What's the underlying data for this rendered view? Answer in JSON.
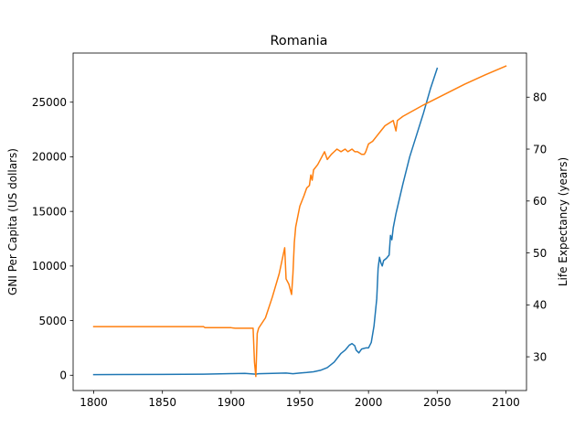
{
  "chart_data": {
    "type": "line",
    "title": "Romania",
    "xlabel": "",
    "ylabel_left": "GNI Per Capita (US dollars)",
    "ylabel_right": "Life Expectancy (years)",
    "xlim": [
      1785,
      2115
    ],
    "ylim_left": [
      -1400,
      29500
    ],
    "ylim_right": [
      23.5,
      88.5
    ],
    "x_ticks": [
      1800,
      1850,
      1900,
      1950,
      2000,
      2050,
      2100
    ],
    "y_left_ticks": [
      0,
      5000,
      10000,
      15000,
      20000,
      25000
    ],
    "y_right_ticks": [
      30,
      40,
      50,
      60,
      70,
      80
    ],
    "grid": false,
    "legend": "none",
    "series": [
      {
        "axis": "left",
        "color": "#1f77b4",
        "points": [
          [
            1800,
            60
          ],
          [
            1850,
            80
          ],
          [
            1880,
            100
          ],
          [
            1900,
            150
          ],
          [
            1910,
            170
          ],
          [
            1918,
            100
          ],
          [
            1920,
            140
          ],
          [
            1930,
            170
          ],
          [
            1940,
            200
          ],
          [
            1945,
            140
          ],
          [
            1950,
            200
          ],
          [
            1955,
            250
          ],
          [
            1960,
            320
          ],
          [
            1965,
            450
          ],
          [
            1970,
            700
          ],
          [
            1975,
            1200
          ],
          [
            1980,
            2000
          ],
          [
            1983,
            2300
          ],
          [
            1986,
            2750
          ],
          [
            1988,
            2900
          ],
          [
            1990,
            2700
          ],
          [
            1991,
            2300
          ],
          [
            1993,
            2050
          ],
          [
            1995,
            2400
          ],
          [
            1998,
            2500
          ],
          [
            2000,
            2500
          ],
          [
            2002,
            3000
          ],
          [
            2004,
            4500
          ],
          [
            2006,
            7000
          ],
          [
            2007,
            9800
          ],
          [
            2008,
            10800
          ],
          [
            2009,
            10300
          ],
          [
            2010,
            10000
          ],
          [
            2011,
            10500
          ],
          [
            2013,
            10700
          ],
          [
            2015,
            11000
          ],
          [
            2016,
            12800
          ],
          [
            2017,
            12400
          ],
          [
            2018,
            13500
          ],
          [
            2020,
            14800
          ],
          [
            2025,
            17500
          ],
          [
            2030,
            20000
          ],
          [
            2035,
            22000
          ],
          [
            2040,
            24000
          ],
          [
            2045,
            26200
          ],
          [
            2050,
            28100
          ]
        ]
      },
      {
        "axis": "right",
        "color": "#ff7f0e",
        "points": [
          [
            1800,
            35.8
          ],
          [
            1850,
            35.8
          ],
          [
            1880,
            35.8
          ],
          [
            1881,
            35.6
          ],
          [
            1900,
            35.6
          ],
          [
            1903,
            35.5
          ],
          [
            1916,
            35.5
          ],
          [
            1917,
            29
          ],
          [
            1918,
            26.2
          ],
          [
            1919,
            34.5
          ],
          [
            1920,
            35.5
          ],
          [
            1925,
            37.5
          ],
          [
            1930,
            41.5
          ],
          [
            1935,
            46
          ],
          [
            1939,
            51
          ],
          [
            1940,
            45
          ],
          [
            1942,
            44
          ],
          [
            1943,
            43
          ],
          [
            1944,
            42
          ],
          [
            1945,
            46
          ],
          [
            1946,
            52
          ],
          [
            1947,
            55
          ],
          [
            1950,
            59
          ],
          [
            1953,
            61
          ],
          [
            1955,
            62.5
          ],
          [
            1957,
            63
          ],
          [
            1958,
            65
          ],
          [
            1959,
            64
          ],
          [
            1960,
            66
          ],
          [
            1963,
            67
          ],
          [
            1966,
            68.5
          ],
          [
            1968,
            69.5
          ],
          [
            1970,
            68
          ],
          [
            1973,
            69
          ],
          [
            1975,
            69.5
          ],
          [
            1977,
            70
          ],
          [
            1980,
            69.5
          ],
          [
            1983,
            70
          ],
          [
            1985,
            69.5
          ],
          [
            1988,
            70
          ],
          [
            1990,
            69.5
          ],
          [
            1992,
            69.5
          ],
          [
            1995,
            69
          ],
          [
            1997,
            69
          ],
          [
            1998,
            69.5
          ],
          [
            2000,
            71
          ],
          [
            2003,
            71.5
          ],
          [
            2006,
            72.5
          ],
          [
            2009,
            73.5
          ],
          [
            2012,
            74.5
          ],
          [
            2015,
            75
          ],
          [
            2018,
            75.5
          ],
          [
            2019,
            74.5
          ],
          [
            2020,
            73.5
          ],
          [
            2021,
            75.5
          ],
          [
            2025,
            76.3
          ],
          [
            2040,
            78.5
          ],
          [
            2055,
            80.5
          ],
          [
            2070,
            82.5
          ],
          [
            2085,
            84.3
          ],
          [
            2100,
            86
          ]
        ]
      }
    ]
  }
}
